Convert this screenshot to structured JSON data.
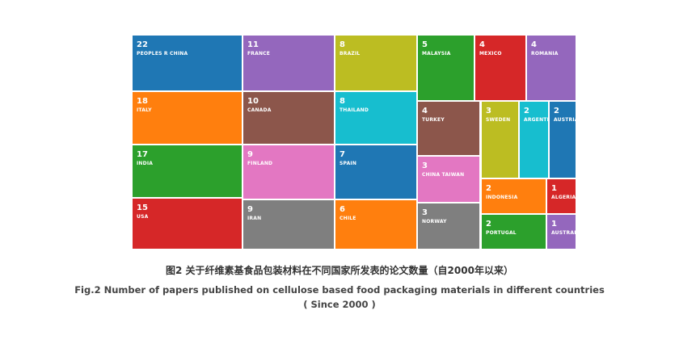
{
  "chart_data": {
    "type": "treemap",
    "title": "",
    "items": [
      {
        "label": "PEOPLES R CHINA",
        "value": 22,
        "color": "#1f77b4"
      },
      {
        "label": "ITALY",
        "value": 18,
        "color": "#ff7f0e"
      },
      {
        "label": "INDIA",
        "value": 17,
        "color": "#2ca02c"
      },
      {
        "label": "USA",
        "value": 15,
        "color": "#d62728"
      },
      {
        "label": "FRANCE",
        "value": 11,
        "color": "#9467bd"
      },
      {
        "label": "CANADA",
        "value": 10,
        "color": "#8c564b"
      },
      {
        "label": "FINLAND",
        "value": 9,
        "color": "#e377c2"
      },
      {
        "label": "IRAN",
        "value": 9,
        "color": "#7f7f7f"
      },
      {
        "label": "BRAZIL",
        "value": 8,
        "color": "#bcbd22"
      },
      {
        "label": "THAILAND",
        "value": 8,
        "color": "#17becf"
      },
      {
        "label": "SPAIN",
        "value": 7,
        "color": "#1f77b4"
      },
      {
        "label": "CHILE",
        "value": 6,
        "color": "#ff7f0e"
      },
      {
        "label": "MALAYSIA",
        "value": 5,
        "color": "#2ca02c"
      },
      {
        "label": "MEXICO",
        "value": 4,
        "color": "#d62728"
      },
      {
        "label": "ROMANIA",
        "value": 4,
        "color": "#9467bd"
      },
      {
        "label": "TURKEY",
        "value": 4,
        "color": "#8c564b"
      },
      {
        "label": "CHINA TAIWAN",
        "value": 3,
        "color": "#e377c2"
      },
      {
        "label": "NORWAY",
        "value": 3,
        "color": "#7f7f7f"
      },
      {
        "label": "SWEDEN",
        "value": 3,
        "color": "#bcbd22"
      },
      {
        "label": "ARGENTINA",
        "value": 2,
        "color": "#17becf"
      },
      {
        "label": "AUSTRIA",
        "value": 2,
        "color": "#1f77b4"
      },
      {
        "label": "INDONESIA",
        "value": 2,
        "color": "#ff7f0e"
      },
      {
        "label": "ALGERIA",
        "value": 1,
        "color": "#d62728"
      },
      {
        "label": "PORTUGAL",
        "value": 2,
        "color": "#2ca02c"
      },
      {
        "label": "AUSTRALIA",
        "value": 1,
        "color": "#9467bd"
      }
    ]
  },
  "caption": {
    "cn": "图2 关于纤维素基食品包装材料在不同国家所发表的论文数量（自2000年以来）",
    "en_line1": "Fig.2 Number of papers published on cellulose based food packaging materials in different countries",
    "en_line2": "( Since 2000 )"
  }
}
